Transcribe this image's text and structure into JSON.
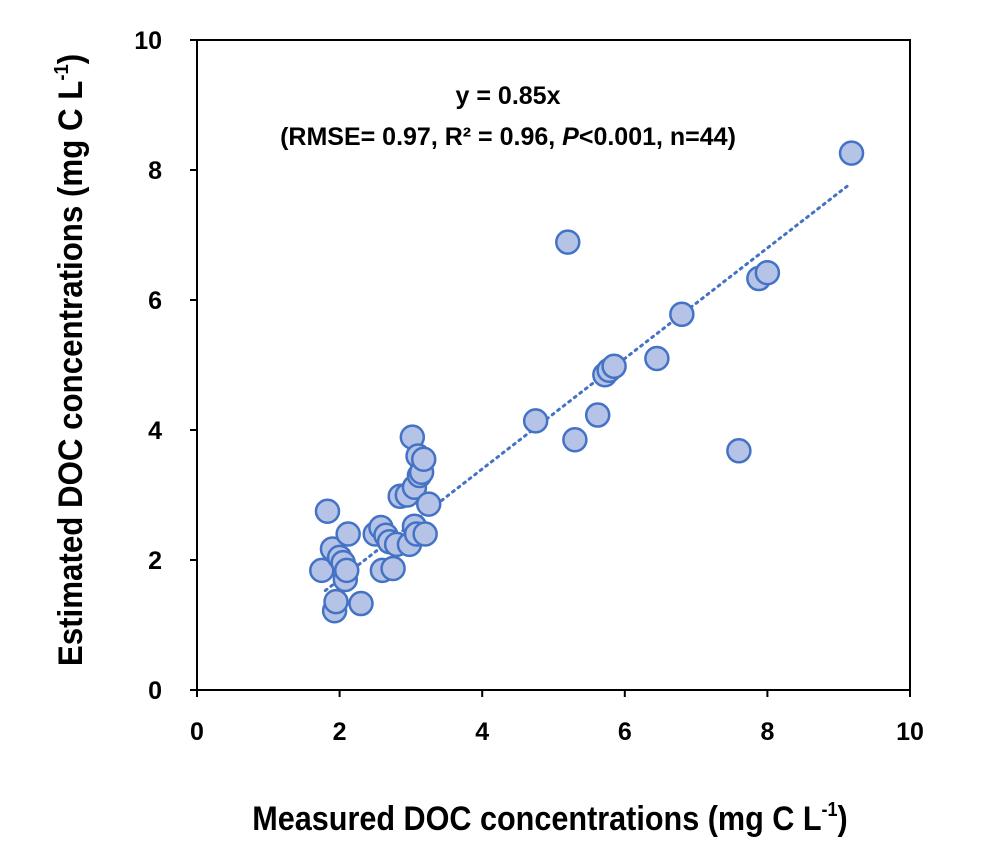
{
  "chart_data": {
    "type": "scatter",
    "xlabel_main": "Measured DOC concentrations (mg C L",
    "xlabel_sup": "-1",
    "xlabel_close": ")",
    "ylabel_main": "Estimated DOC concentrations (mg C L",
    "ylabel_sup": "-1",
    "ylabel_close": ")",
    "xlim": [
      0,
      10
    ],
    "ylim": [
      0,
      10
    ],
    "xticks": [
      0,
      2,
      4,
      6,
      8,
      10
    ],
    "yticks": [
      0,
      2,
      4,
      6,
      8,
      10
    ],
    "grid": false,
    "annotation": {
      "equation": "y = 0.85x",
      "stats_prefix": "(RMSE= 0.97, R² = 0.96, ",
      "stats_p": "P",
      "stats_suffix": "<0.001, n=44)"
    },
    "trendline": {
      "slope": 0.85,
      "x_start": 1.8,
      "x_end": 9.15,
      "style": "dotted"
    },
    "colors": {
      "marker_fill": "#b4c3e6",
      "marker_edge": "#4472c4",
      "trendline": "#4472c4"
    },
    "points": [
      {
        "x": 1.83,
        "y": 2.75
      },
      {
        "x": 1.75,
        "y": 1.84
      },
      {
        "x": 1.9,
        "y": 2.17
      },
      {
        "x": 1.93,
        "y": 1.22
      },
      {
        "x": 1.95,
        "y": 1.36
      },
      {
        "x": 2.0,
        "y": 2.04
      },
      {
        "x": 2.05,
        "y": 1.96
      },
      {
        "x": 2.08,
        "y": 1.7
      },
      {
        "x": 2.1,
        "y": 1.84
      },
      {
        "x": 2.12,
        "y": 2.4
      },
      {
        "x": 2.3,
        "y": 1.33
      },
      {
        "x": 2.5,
        "y": 2.4
      },
      {
        "x": 2.58,
        "y": 2.5
      },
      {
        "x": 2.6,
        "y": 1.84
      },
      {
        "x": 2.65,
        "y": 2.38
      },
      {
        "x": 2.7,
        "y": 2.28
      },
      {
        "x": 2.75,
        "y": 1.87
      },
      {
        "x": 2.8,
        "y": 2.24
      },
      {
        "x": 2.85,
        "y": 2.98
      },
      {
        "x": 2.95,
        "y": 3.0
      },
      {
        "x": 2.98,
        "y": 2.24
      },
      {
        "x": 3.02,
        "y": 3.89
      },
      {
        "x": 3.05,
        "y": 2.52
      },
      {
        "x": 3.05,
        "y": 3.12
      },
      {
        "x": 3.08,
        "y": 2.4
      },
      {
        "x": 3.1,
        "y": 3.6
      },
      {
        "x": 3.12,
        "y": 3.3
      },
      {
        "x": 3.15,
        "y": 3.35
      },
      {
        "x": 3.18,
        "y": 3.55
      },
      {
        "x": 3.2,
        "y": 2.4
      },
      {
        "x": 3.25,
        "y": 2.86
      },
      {
        "x": 4.75,
        "y": 4.14
      },
      {
        "x": 5.2,
        "y": 6.89
      },
      {
        "x": 5.3,
        "y": 3.85
      },
      {
        "x": 5.62,
        "y": 4.23
      },
      {
        "x": 5.72,
        "y": 4.85
      },
      {
        "x": 5.78,
        "y": 4.92
      },
      {
        "x": 5.85,
        "y": 4.98
      },
      {
        "x": 6.45,
        "y": 5.1
      },
      {
        "x": 6.8,
        "y": 5.78
      },
      {
        "x": 7.6,
        "y": 3.68
      },
      {
        "x": 7.88,
        "y": 6.33
      },
      {
        "x": 8.0,
        "y": 6.42
      },
      {
        "x": 9.18,
        "y": 8.26
      }
    ]
  }
}
